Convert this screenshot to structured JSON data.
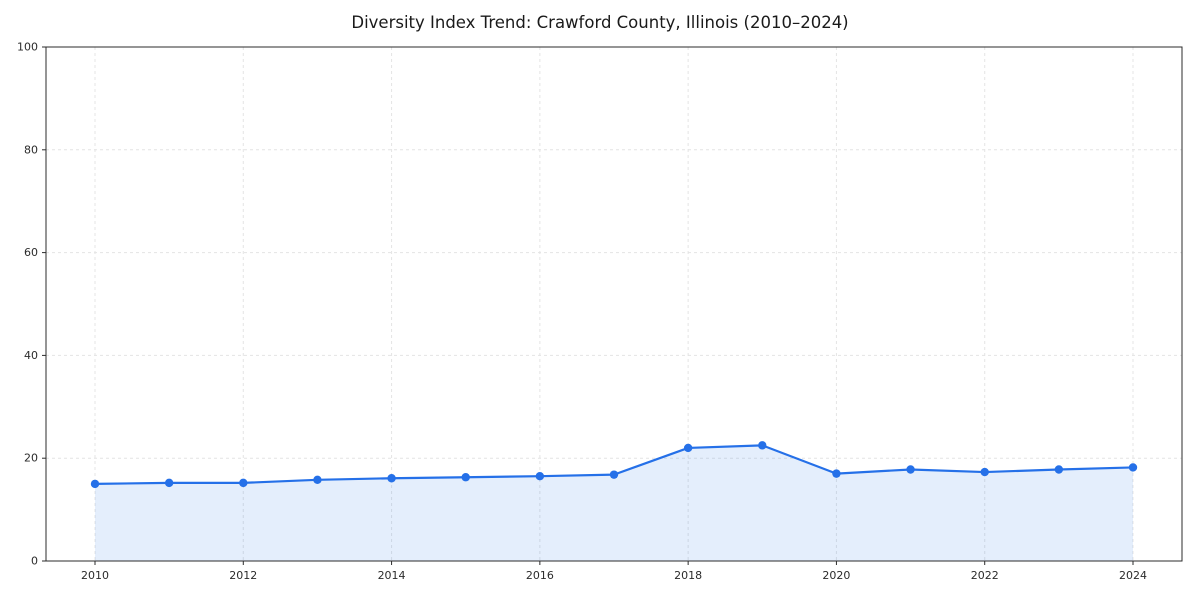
{
  "chart_data": {
    "type": "line",
    "title": "Diversity Index Trend: Crawford County, Illinois (2010–2024)",
    "xlabel": "",
    "ylabel": "",
    "x": [
      2010,
      2011,
      2012,
      2013,
      2014,
      2015,
      2016,
      2017,
      2018,
      2019,
      2020,
      2021,
      2022,
      2023,
      2024
    ],
    "series": [
      {
        "name": "Diversity Index",
        "values": [
          15.0,
          15.2,
          15.2,
          15.8,
          16.1,
          16.3,
          16.5,
          16.8,
          22.0,
          22.5,
          17.0,
          17.8,
          17.3,
          17.8,
          18.2
        ]
      }
    ],
    "ylim": [
      0,
      100
    ],
    "yticks": [
      0,
      20,
      40,
      60,
      80,
      100
    ],
    "xticks": [
      2010,
      2012,
      2014,
      2016,
      2018,
      2020,
      2022,
      2024
    ],
    "grid": "dashed",
    "legend": "none",
    "colors": {
      "line": "#2570e8",
      "marker": "#2570e8",
      "fill": "rgba(37,112,232,0.12)",
      "grid": "#e4e4e4",
      "spine": "#2b2b2b",
      "tick_label": "#2b2b2b",
      "title": "#1a1a1a"
    }
  }
}
